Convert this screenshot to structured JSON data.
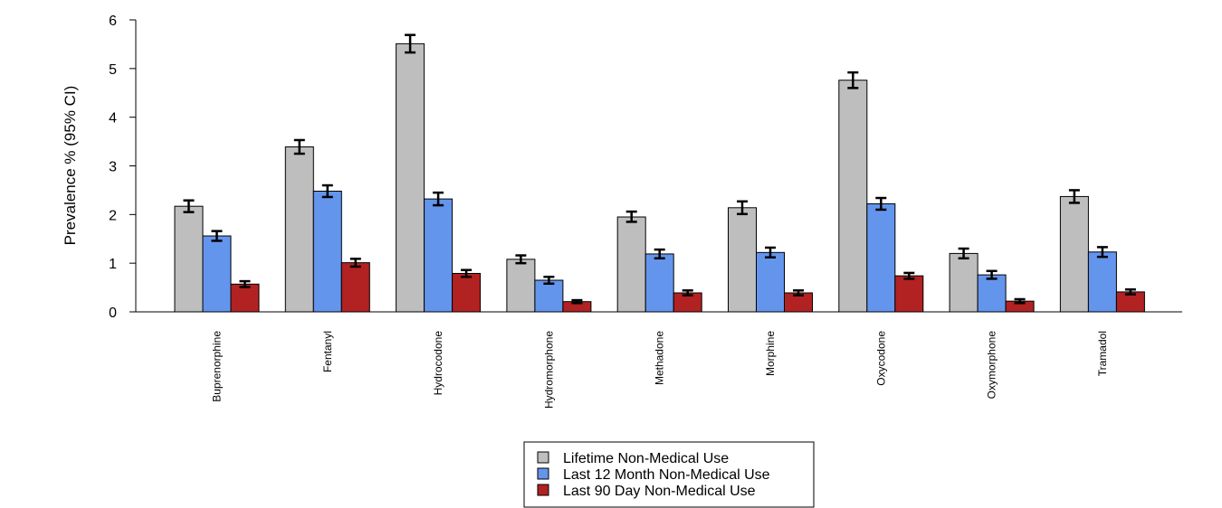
{
  "chart_data": {
    "type": "bar",
    "title": "",
    "xlabel": "",
    "ylabel": "Prevalence % (95% CI)",
    "ylim": [
      0,
      6
    ],
    "yticks": [
      "0",
      "1",
      "2",
      "3",
      "4",
      "5",
      "6"
    ],
    "grid": false,
    "legend_position": "bottom-center",
    "categories": [
      "Buprenorphine",
      "Fentanyl",
      "Hydrocodone",
      "Hydromorphone",
      "Methadone",
      "Morphine",
      "Oxycodone",
      "Oxymorphone",
      "Tramadol"
    ],
    "series": [
      {
        "name": "Lifetime Non-Medical Use",
        "color": "#bebebe",
        "values": [
          2.17,
          3.39,
          5.51,
          1.08,
          1.95,
          2.14,
          4.76,
          1.2,
          2.37
        ],
        "ci_low": [
          2.05,
          3.25,
          5.33,
          1.0,
          1.85,
          2.01,
          4.6,
          1.1,
          2.24
        ],
        "ci_high": [
          2.29,
          3.53,
          5.69,
          1.16,
          2.06,
          2.27,
          4.92,
          1.3,
          2.5
        ]
      },
      {
        "name": "Last 12 Month Non-Medical Use",
        "color": "#6495ed",
        "values": [
          1.56,
          2.48,
          2.32,
          0.65,
          1.19,
          1.22,
          2.22,
          0.76,
          1.23
        ],
        "ci_low": [
          1.46,
          2.36,
          2.19,
          0.58,
          1.1,
          1.12,
          2.1,
          0.68,
          1.13
        ],
        "ci_high": [
          1.66,
          2.6,
          2.45,
          0.72,
          1.28,
          1.32,
          2.34,
          0.84,
          1.33
        ]
      },
      {
        "name": "Last 90 Day Non-Medical Use",
        "color": "#b22222",
        "values": [
          0.57,
          1.01,
          0.79,
          0.21,
          0.39,
          0.39,
          0.74,
          0.22,
          0.41
        ],
        "ci_low": [
          0.51,
          0.93,
          0.72,
          0.18,
          0.34,
          0.34,
          0.68,
          0.18,
          0.36
        ],
        "ci_high": [
          0.63,
          1.09,
          0.86,
          0.24,
          0.44,
          0.44,
          0.8,
          0.26,
          0.46
        ]
      }
    ]
  }
}
